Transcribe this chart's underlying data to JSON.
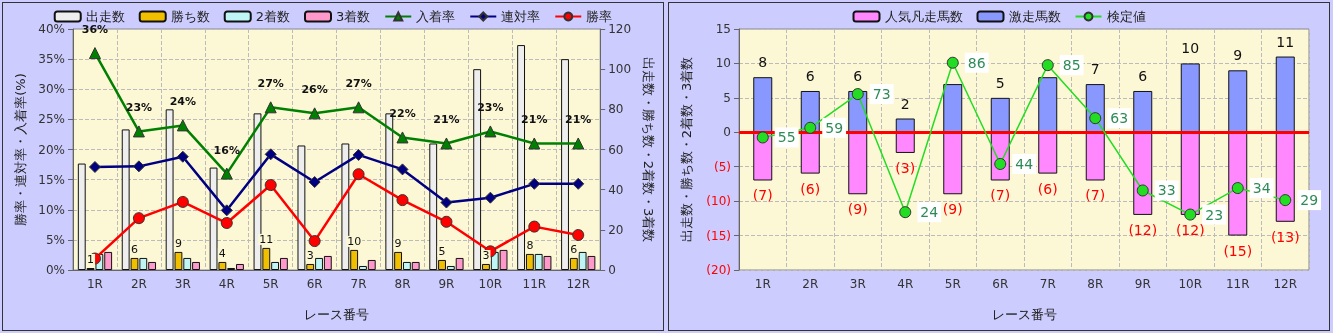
{
  "chart_data": [
    {
      "type": "bar",
      "categories": [
        "1R",
        "2R",
        "3R",
        "4R",
        "5R",
        "6R",
        "7R",
        "8R",
        "9R",
        "10R",
        "11R",
        "12R"
      ],
      "xlabel": "レース番号",
      "ylabel": "勝率・連対率・入着率(%)",
      "y2label": "出走数・勝ち数・2着数・3着数",
      "ylim": [
        0,
        40
      ],
      "yticks": [
        {
          "value": 0,
          "label": "0%"
        },
        {
          "value": 5,
          "label": "5%"
        },
        {
          "value": 10,
          "label": "10%"
        },
        {
          "value": 15,
          "label": "15%"
        },
        {
          "value": 20,
          "label": "20%"
        },
        {
          "value": 25,
          "label": "25%"
        },
        {
          "value": 30,
          "label": "30%"
        },
        {
          "value": 35,
          "label": "35%"
        },
        {
          "value": 40,
          "label": "40%"
        }
      ],
      "y2lim": [
        0,
        120
      ],
      "y2ticks": [
        0,
        20,
        40,
        60,
        80,
        100,
        120
      ],
      "grid": true,
      "legend": "top",
      "series": [
        {
          "name": "出走数",
          "axis": "y2",
          "color": "#eeeeee",
          "values": [
            53,
            70,
            80,
            51,
            78,
            62,
            63,
            78,
            63,
            100,
            112,
            105
          ]
        },
        {
          "name": "勝ち数",
          "axis": "y2",
          "color": "#f0c000",
          "values": [
            1,
            6,
            9,
            4,
            11,
            3,
            10,
            9,
            5,
            3,
            8,
            6
          ],
          "value_labels": [
            "1",
            "6",
            "9",
            "4",
            "11",
            "3",
            "10",
            "9",
            "5",
            "3",
            "8",
            "6"
          ]
        },
        {
          "name": "2着数",
          "axis": "y2",
          "color": "#bff5f5",
          "values": [
            8,
            6,
            6,
            1,
            4,
            6,
            2,
            4,
            2,
            9,
            8,
            9
          ]
        },
        {
          "name": "3着数",
          "axis": "y2",
          "color": "#ff99cc",
          "values": [
            9,
            4,
            4,
            3,
            6,
            7,
            5,
            4,
            6,
            10,
            7,
            7
          ]
        },
        {
          "name": "入着率",
          "type": "line",
          "color": "#008000",
          "marker": "triangle",
          "values": [
            36,
            23,
            24,
            16,
            27,
            26,
            27,
            22,
            21,
            23,
            21,
            21
          ],
          "value_labels": [
            "36%",
            "23%",
            "24%",
            "16%",
            "27%",
            "26%",
            "27%",
            "22%",
            "21%",
            "23%",
            "21%",
            "21%"
          ]
        },
        {
          "name": "連対率",
          "type": "line",
          "color": "#000080",
          "marker": "diamond",
          "values": [
            17.1,
            17.2,
            18.8,
            9.9,
            19.2,
            14.6,
            19.1,
            16.7,
            11.2,
            12.0,
            14.3,
            14.3
          ]
        },
        {
          "name": "勝率",
          "type": "line",
          "color": "#ff0000",
          "marker": "circle",
          "values": [
            1.9,
            8.6,
            11.3,
            7.8,
            14.1,
            4.8,
            15.9,
            11.6,
            8.0,
            3.1,
            7.2,
            5.8
          ]
        }
      ]
    },
    {
      "type": "bar",
      "stacked": true,
      "categories": [
        "1R",
        "2R",
        "3R",
        "4R",
        "5R",
        "6R",
        "7R",
        "8R",
        "9R",
        "10R",
        "11R",
        "12R"
      ],
      "xlabel": "レース番号",
      "ylabel": "出走数・勝ち数・2着数・3着数",
      "ylim": [
        -20,
        15
      ],
      "yticks": [
        {
          "value": -20,
          "label": "(20)"
        },
        {
          "value": -15,
          "label": "(15)"
        },
        {
          "value": -10,
          "label": "(10)"
        },
        {
          "value": -5,
          "label": "(5)"
        },
        0,
        5,
        10,
        15
      ],
      "y2lim": [
        0,
        100
      ],
      "grid": true,
      "legend": "top",
      "ref_lines": [
        {
          "axis": "y",
          "value": 0,
          "color": "#ff0000"
        }
      ],
      "series": [
        {
          "name": "人気凡走馬数",
          "color": "#ff88ff",
          "values": [
            -7,
            -6,
            -9,
            -3,
            -9,
            -7,
            -6,
            -7,
            -12,
            -12,
            -15,
            -13
          ],
          "value_labels": [
            "(7)",
            "(6)",
            "(9)",
            "(3)",
            "(9)",
            "(7)",
            "(6)",
            "(7)",
            "(12)",
            "(12)",
            "(15)",
            "(13)"
          ]
        },
        {
          "name": "激走馬数",
          "color": "#8898ff",
          "values": [
            8,
            6,
            6,
            2,
            7,
            5,
            8,
            7,
            6,
            10,
            9,
            11
          ],
          "value_labels": [
            "8",
            "6",
            "6",
            "2",
            null,
            "5",
            null,
            "7",
            "6",
            "10",
            "9",
            "11"
          ]
        },
        {
          "name": "検定値",
          "type": "line",
          "axis": "y2",
          "color": "#22dd22",
          "marker": "circle",
          "values": [
            55,
            59,
            73,
            24,
            86,
            44,
            85,
            63,
            33,
            23,
            34,
            29
          ],
          "value_labels": [
            "55",
            "59",
            "73",
            "24",
            "86",
            "44",
            "85",
            "63",
            "33",
            "23",
            "34",
            "29"
          ]
        }
      ]
    }
  ]
}
